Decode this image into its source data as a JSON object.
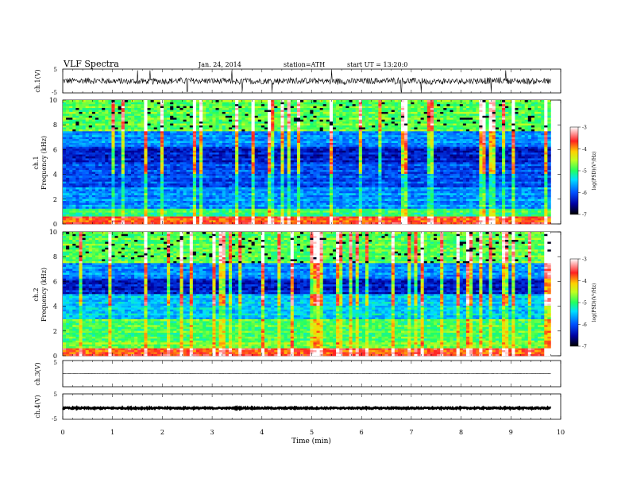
{
  "header": {
    "title": "VLF  Spectra",
    "date": "Jan. 24, 2014",
    "station": "station=ATH",
    "start": "start  UT  =   13:20:0"
  },
  "chart_data": [
    {
      "type": "line",
      "panel": "ch1-waveform",
      "ylabel": "ch.1(V)",
      "ylim": [
        -5,
        5
      ],
      "xlim": [
        0,
        10
      ],
      "yticks": [
        "5",
        "-5"
      ],
      "baseline": 0,
      "amplitude": 1.3,
      "spike_times": [
        1.5,
        1.75,
        2.5,
        3.4,
        3.6,
        4.2,
        5.4,
        6.8,
        7.2,
        8.6,
        8.9
      ],
      "color": "#000000"
    },
    {
      "type": "heatmap",
      "panel": "ch1-spectrogram",
      "ylabel": "ch.1\nFrequency  (kHz)",
      "ylim": [
        0,
        10
      ],
      "xlim": [
        0,
        10
      ],
      "yticks": [
        "0",
        "2",
        "4",
        "6",
        "8",
        "10"
      ],
      "data_end_min": 9.8,
      "colorbar": {
        "label": "log(PSD)(V²/Hz)",
        "range": [
          -7,
          -3
        ],
        "ticks": [
          "-3",
          "-4",
          "-5",
          "-6",
          "-7"
        ]
      }
    },
    {
      "type": "heatmap",
      "panel": "ch2-spectrogram",
      "ylabel": "ch.2\nFrequency  (kHz)",
      "ylim": [
        0,
        10
      ],
      "xlim": [
        0,
        10
      ],
      "yticks": [
        "0",
        "2",
        "4",
        "6",
        "8",
        "10"
      ],
      "data_end_min": 9.8,
      "colorbar": {
        "label": "log(PSD)(V²/Hz)",
        "range": [
          -7,
          -3
        ],
        "ticks": [
          "-3",
          "-4",
          "-5",
          "-6",
          "-7"
        ]
      }
    },
    {
      "type": "line",
      "panel": "ch3-waveform",
      "ylabel": "ch.3(V)",
      "ylim": [
        -5,
        5
      ],
      "xlim": [
        0,
        10
      ],
      "yticks": [
        "5"
      ],
      "baseline": 0,
      "amplitude": 0.05,
      "color": "#000000"
    },
    {
      "type": "line",
      "panel": "ch4-waveform",
      "ylabel": "ch.4(V)",
      "ylim": [
        -5,
        5
      ],
      "xlim": [
        0,
        10
      ],
      "yticks": [
        "5",
        "-5"
      ],
      "baseline": -0.6,
      "amplitude": 0.25,
      "color": "#000000"
    }
  ],
  "xaxis": {
    "label": "Time  (min)",
    "ticks": [
      "0",
      "1",
      "2",
      "3",
      "4",
      "5",
      "6",
      "7",
      "8",
      "9",
      "10"
    ]
  }
}
